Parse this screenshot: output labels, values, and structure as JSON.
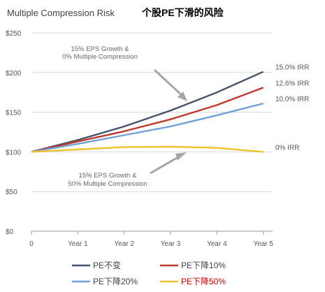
{
  "title": "Multiple Compression Risk",
  "subtitle_cn": "个股PE下滑的风险",
  "chart_data": {
    "type": "line",
    "x": [
      0,
      1,
      2,
      3,
      4,
      5
    ],
    "x_tick_labels": [
      "0",
      "Year 1",
      "Year 2",
      "Year 3",
      "Year 4",
      "Year 5"
    ],
    "y_tick_labels": [
      "$250",
      "$200",
      "$150",
      "$100",
      "$50",
      "$0"
    ],
    "y_ticks": [
      250,
      200,
      150,
      100,
      50,
      0
    ],
    "ylim": [
      0,
      250
    ],
    "xlim": [
      0,
      5.2
    ],
    "grid": "horizontal",
    "series": [
      {
        "name": "PE不变",
        "color": "#44546a",
        "irr": "15.0% IRR",
        "values": [
          100,
          115,
          132,
          152,
          175,
          201
        ]
      },
      {
        "name": "PE下降10%",
        "color": "#c0392b",
        "irr": "12.6% IRR",
        "values": [
          100,
          113,
          126,
          141,
          159,
          181
        ]
      },
      {
        "name": "PE下降20%",
        "color": "#6fa0d8",
        "irr": "10.0% IRR",
        "values": [
          100,
          110,
          121,
          132,
          146,
          161
        ]
      },
      {
        "name": "PE下降50%",
        "color": "#f2c12e",
        "irr": "0% IRR",
        "values": [
          100,
          103,
          106,
          106.5,
          105,
          100
        ]
      }
    ],
    "annotations": [
      {
        "lines": [
          "15% EPS Growth &",
          "0% Multiple Compression"
        ]
      },
      {
        "lines": [
          "15% EPS Growth &",
          "50% Multiple Compression"
        ]
      }
    ],
    "legend_highlight_color": "#cc0000"
  }
}
